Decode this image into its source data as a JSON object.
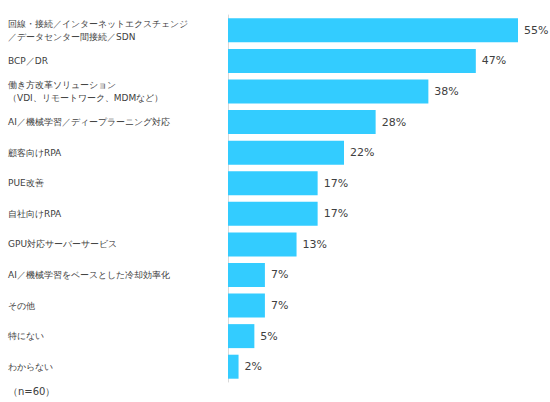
{
  "chart_data": {
    "type": "bar",
    "orientation": "horizontal",
    "categories": [
      "回線・接続／インターネットエクスチェンジ\n／データセンター間接続／SDN",
      "BCP／DR",
      "働き方改革ソリューション\n（VDI、リモートワーク、MDMなど）",
      "AI／機械学習／ディープラーニング対応",
      "顧客向けRPA",
      "PUE改善",
      "自社向けRPA",
      "GPU対応サーバーサービス",
      "AI／機械学習をベースとした冷却効率化",
      "その他",
      "特にない",
      "わからない"
    ],
    "values": [
      55,
      47,
      38,
      28,
      22,
      17,
      17,
      13,
      7,
      7,
      5,
      2
    ],
    "value_labels": [
      "55%",
      "47%",
      "38%",
      "28%",
      "22%",
      "17%",
      "17%",
      "13%",
      "7%",
      "7%",
      "5%",
      "2%"
    ],
    "color": "#33ccff",
    "xlim": [
      0,
      55
    ],
    "data_labels": true,
    "tick_labels": "y",
    "grid": false,
    "note": "（n=60）"
  }
}
